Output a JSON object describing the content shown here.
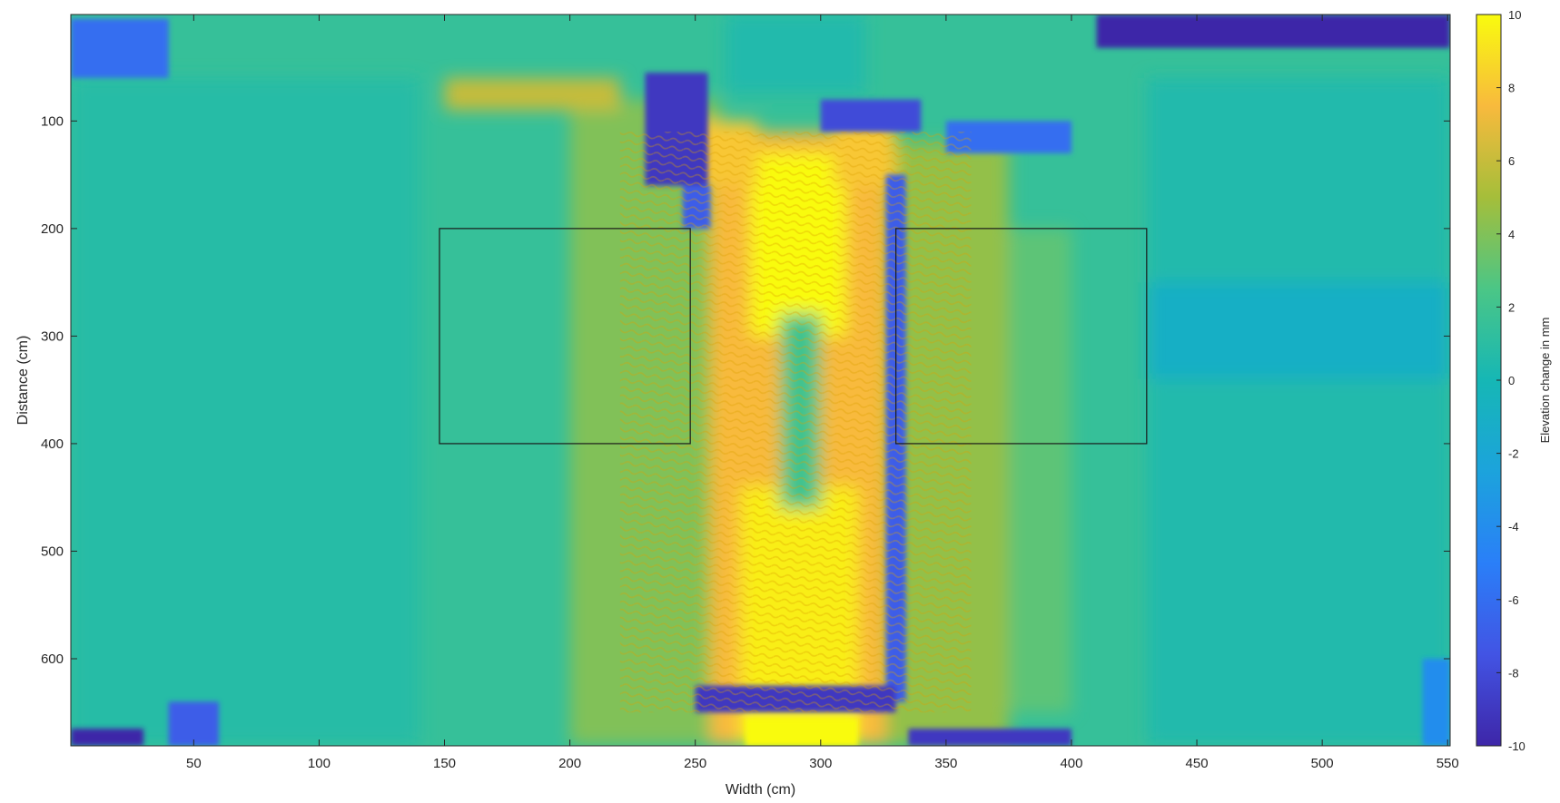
{
  "chart_data": {
    "type": "heatmap",
    "title": "",
    "xlabel": "Width (cm)",
    "ylabel": "Distance (cm)",
    "xlim": [
      1,
      551
    ],
    "ylim": [
      1,
      681
    ],
    "y_direction": "reversed",
    "xticks": [
      50,
      100,
      150,
      200,
      250,
      300,
      350,
      400,
      450,
      500,
      550
    ],
    "yticks": [
      100,
      200,
      300,
      400,
      500,
      600
    ],
    "colormap": "parula",
    "colorbar": {
      "label": "Elevation change in mm",
      "range": [
        -10,
        10
      ],
      "ticks": [
        -10,
        -8,
        -6,
        -4,
        -2,
        0,
        2,
        4,
        6,
        8,
        10
      ]
    },
    "field_description": {
      "background_value_mm": 1.5,
      "central_channel": {
        "x_range": [
          250,
          330
        ],
        "y_range": [
          80,
          681
        ],
        "peak_value_mm": 10,
        "narrowest_near_y": 300
      }
    },
    "rectangles": [
      {
        "x": [
          148,
          248
        ],
        "y": [
          200,
          400
        ]
      },
      {
        "x": [
          330,
          430
        ],
        "y": [
          200,
          400
        ]
      }
    ],
    "grid": false,
    "legend": "none"
  }
}
